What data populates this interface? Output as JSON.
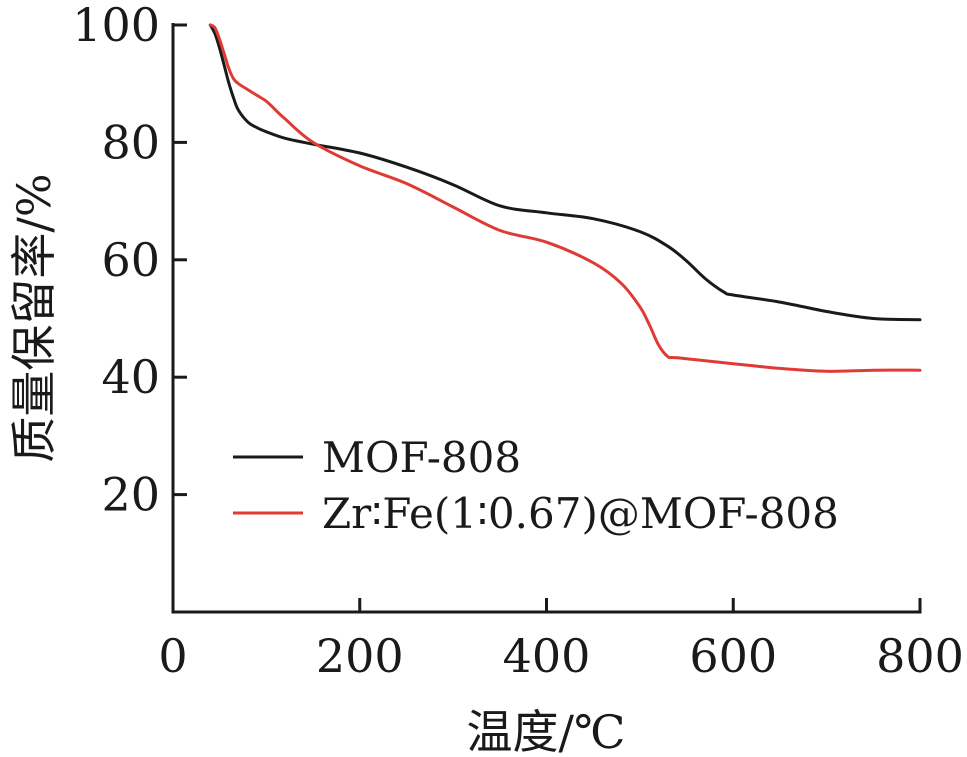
{
  "chart_data": {
    "type": "line",
    "xlabel": "温度/℃",
    "ylabel": "质量保留率/%",
    "xlim": [
      0,
      800
    ],
    "ylim": [
      0,
      100
    ],
    "xticks": [
      0,
      200,
      400,
      600,
      800
    ],
    "yticks": [
      20,
      40,
      60,
      80,
      100
    ],
    "xtick_labels": [
      "0",
      "200",
      "400",
      "600",
      "800"
    ],
    "ytick_labels": [
      "20",
      "40",
      "60",
      "80",
      "100"
    ],
    "grid": false,
    "legend_position": "lower-left",
    "series": [
      {
        "name": "MOF-808",
        "color": "#1a1a1a",
        "x": [
          40,
          45,
          50,
          55,
          60,
          65,
          70,
          80,
          90,
          100,
          120,
          150,
          200,
          250,
          300,
          350,
          400,
          450,
          500,
          530,
          550,
          570,
          590,
          600,
          650,
          700,
          750,
          800
        ],
        "y": [
          100,
          98.5,
          96,
          93,
          90,
          87.5,
          85.5,
          83.5,
          82.5,
          81.8,
          80.7,
          79.7,
          78.2,
          75.8,
          72.8,
          69.2,
          68.0,
          67.0,
          64.8,
          62.3,
          59.8,
          56.8,
          54.5,
          54.0,
          52.8,
          51.2,
          50.0,
          49.8
        ]
      },
      {
        "name": "Zr∶Fe(1∶0.67)@MOF-808",
        "color": "#e03a35",
        "x": [
          40,
          45,
          50,
          55,
          60,
          65,
          70,
          80,
          90,
          100,
          110,
          120,
          150,
          200,
          250,
          300,
          350,
          400,
          450,
          480,
          500,
          510,
          520,
          530,
          540,
          600,
          650,
          700,
          750,
          800
        ],
        "y": [
          100,
          99.5,
          97.5,
          95,
          92.5,
          90.8,
          90,
          89,
          88,
          87,
          85.5,
          84,
          80,
          76,
          73,
          69,
          65,
          63,
          59.5,
          56,
          52,
          49,
          45.5,
          43.5,
          43.3,
          42.3,
          41.5,
          41.0,
          41.2,
          41.2
        ]
      }
    ]
  }
}
